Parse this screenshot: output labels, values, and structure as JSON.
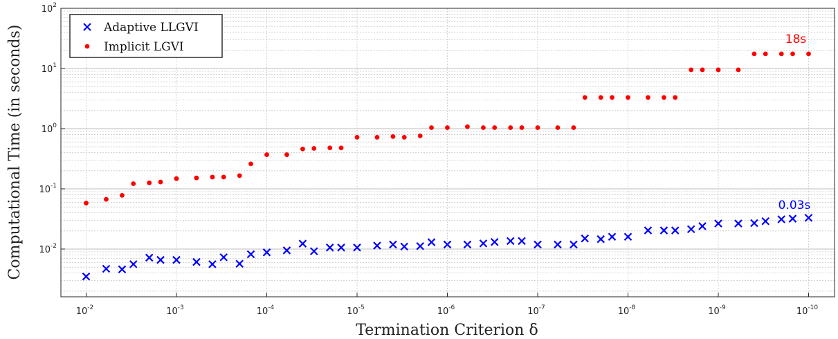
{
  "chart_data": {
    "type": "scatter",
    "xlabel": "Termination Criterion δ",
    "ylabel": "Computational Time (in seconds)",
    "xscale": "log",
    "yscale": "log",
    "x_reversed": true,
    "xlim": [
      0.02,
      5e-11
    ],
    "ylim": [
      0.002,
      100
    ],
    "grid": "major and minor (y), major (x)",
    "legend_position": "top-left",
    "x_ticks": [
      {
        "base": "10",
        "exp": "-2",
        "value": 0.01
      },
      {
        "base": "10",
        "exp": "-3",
        "value": 0.001
      },
      {
        "base": "10",
        "exp": "-4",
        "value": 0.0001
      },
      {
        "base": "10",
        "exp": "-5",
        "value": 1e-05
      },
      {
        "base": "10",
        "exp": "-6",
        "value": 1e-06
      },
      {
        "base": "10",
        "exp": "-7",
        "value": 1e-07
      },
      {
        "base": "10",
        "exp": "-8",
        "value": 1e-08
      },
      {
        "base": "10",
        "exp": "-9",
        "value": 1e-09
      },
      {
        "base": "10",
        "exp": "-10",
        "value": 1e-10
      }
    ],
    "y_ticks": [
      {
        "base": "10",
        "exp": "-2",
        "value": 0.01
      },
      {
        "base": "10",
        "exp": "-1",
        "value": 0.1
      },
      {
        "base": "10",
        "exp": "0",
        "value": 1
      },
      {
        "base": "10",
        "exp": "1",
        "value": 10
      },
      {
        "base": "10",
        "exp": "2",
        "value": 100
      }
    ],
    "x": [
      0.01,
      0.006,
      0.004,
      0.003,
      0.002,
      0.0015,
      0.001,
      0.0006,
      0.0004,
      0.0003,
      0.0002,
      0.00015,
      0.0001,
      6e-05,
      4e-05,
      3e-05,
      2e-05,
      1.5e-05,
      1e-05,
      6e-06,
      4e-06,
      3e-06,
      2e-06,
      1.5e-06,
      1e-06,
      6e-07,
      4e-07,
      3e-07,
      2e-07,
      1.5e-07,
      1e-07,
      6e-08,
      4e-08,
      3e-08,
      2e-08,
      1.5e-08,
      1e-08,
      6e-09,
      4e-09,
      3e-09,
      2e-09,
      1.5e-09,
      1e-09,
      6e-10,
      4e-10,
      3e-10,
      2e-10,
      1.5e-10,
      1e-10
    ],
    "series": [
      {
        "name": "Adaptive LLGVI",
        "color": "#0000ff",
        "marker": "x",
        "values": [
          0.0035,
          0.0047,
          0.0046,
          0.0056,
          0.0072,
          0.0066,
          0.0066,
          0.0061,
          0.0056,
          0.0073,
          0.0057,
          0.0082,
          0.0088,
          0.0095,
          0.0123,
          0.0092,
          0.0106,
          0.0106,
          0.0106,
          0.0114,
          0.0119,
          0.011,
          0.0112,
          0.013,
          0.0119,
          0.0119,
          0.0124,
          0.0131,
          0.0136,
          0.0136,
          0.0119,
          0.0119,
          0.0119,
          0.015,
          0.0146,
          0.016,
          0.016,
          0.0204,
          0.0204,
          0.0204,
          0.0214,
          0.024,
          0.0266,
          0.0266,
          0.027,
          0.029,
          0.0312,
          0.032,
          0.033
        ]
      },
      {
        "name": "Implicit LGVI",
        "color": "#ff0000",
        "marker": "dot",
        "values": [
          0.058,
          0.067,
          0.078,
          0.122,
          0.126,
          0.13,
          0.148,
          0.152,
          0.157,
          0.157,
          0.166,
          0.26,
          0.37,
          0.37,
          0.46,
          0.47,
          0.48,
          0.48,
          0.72,
          0.72,
          0.74,
          0.72,
          0.76,
          1.04,
          1.04,
          1.08,
          1.04,
          1.04,
          1.04,
          1.04,
          1.04,
          1.04,
          1.04,
          3.3,
          3.3,
          3.3,
          3.3,
          3.3,
          3.3,
          3.3,
          9.5,
          9.5,
          9.5,
          9.5,
          17.5,
          17.5,
          17.5,
          17.5,
          17.5
        ]
      }
    ],
    "annotations": [
      {
        "text": "18s",
        "color": "#ff0000",
        "x": 2e-10,
        "y": 25
      },
      {
        "text": "0.03s",
        "color": "#0000ff",
        "x": 2e-10,
        "y": 0.045
      }
    ]
  }
}
